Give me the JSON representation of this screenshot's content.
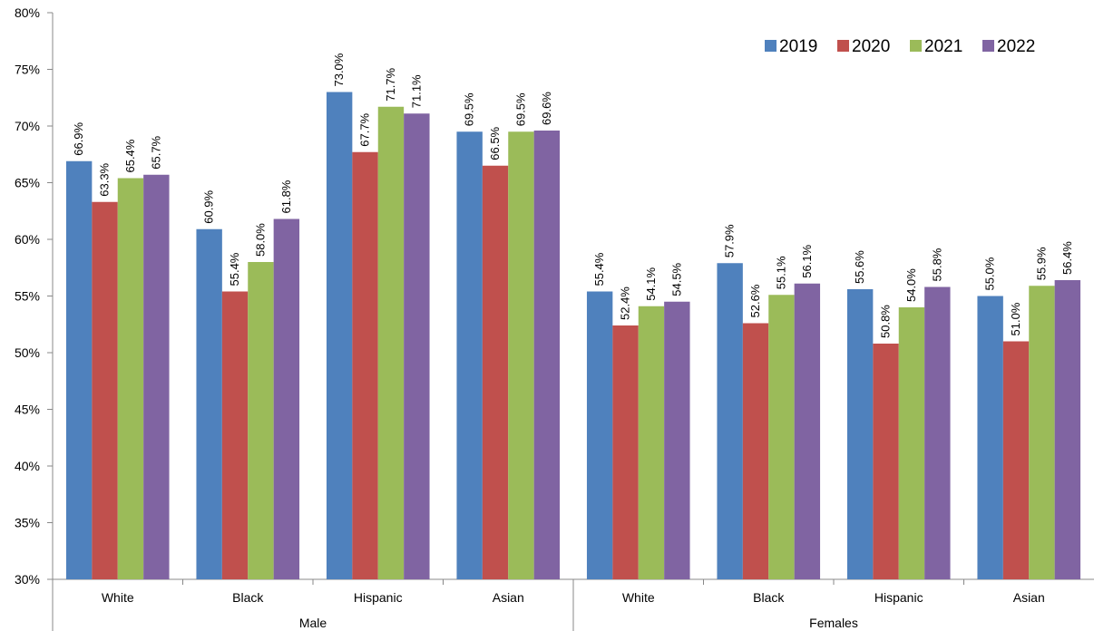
{
  "chart_data": {
    "type": "bar",
    "title": "",
    "xlabel": "",
    "ylabel": "",
    "ylim": [
      30,
      80
    ],
    "y_ticks": [
      "30%",
      "35%",
      "40%",
      "45%",
      "50%",
      "55%",
      "60%",
      "65%",
      "70%",
      "75%",
      "80%"
    ],
    "y_tick_values": [
      30,
      35,
      40,
      45,
      50,
      55,
      60,
      65,
      70,
      75,
      80
    ],
    "grid": false,
    "legend_position": "top-right",
    "groups": [
      "Male",
      "Females"
    ],
    "categories": [
      "White",
      "Black",
      "Hispanic",
      "Asian",
      "White",
      "Black",
      "Hispanic",
      "Asian"
    ],
    "series": [
      {
        "name": "2019",
        "color": "#4F81BD",
        "values": [
          66.9,
          60.9,
          73.0,
          69.5,
          55.4,
          57.9,
          55.6,
          55.0
        ],
        "labels": [
          "66.9%",
          "60.9%",
          "73.0%",
          "69.5%",
          "55.4%",
          "57.9%",
          "55.6%",
          "55.0%"
        ]
      },
      {
        "name": "2020",
        "color": "#C0504D",
        "values": [
          63.3,
          55.4,
          67.7,
          66.5,
          52.4,
          52.6,
          50.8,
          51.0
        ],
        "labels": [
          "63.3%",
          "55.4%",
          "67.7%",
          "66.5%",
          "52.4%",
          "52.6%",
          "50.8%",
          "51.0%"
        ]
      },
      {
        "name": "2021",
        "color": "#9BBB59",
        "values": [
          65.4,
          58.0,
          71.7,
          69.5,
          54.1,
          55.1,
          54.0,
          55.9
        ],
        "labels": [
          "65.4%",
          "58.0%",
          "71.7%",
          "69.5%",
          "54.1%",
          "55.1%",
          "54.0%",
          "55.9%"
        ]
      },
      {
        "name": "2022",
        "color": "#8064A2",
        "values": [
          65.7,
          61.8,
          71.1,
          69.6,
          54.5,
          56.1,
          55.8,
          56.4
        ],
        "labels": [
          "65.7%",
          "61.8%",
          "71.1%",
          "69.6%",
          "54.5%",
          "56.1%",
          "55.8%",
          "56.4%"
        ]
      }
    ]
  }
}
